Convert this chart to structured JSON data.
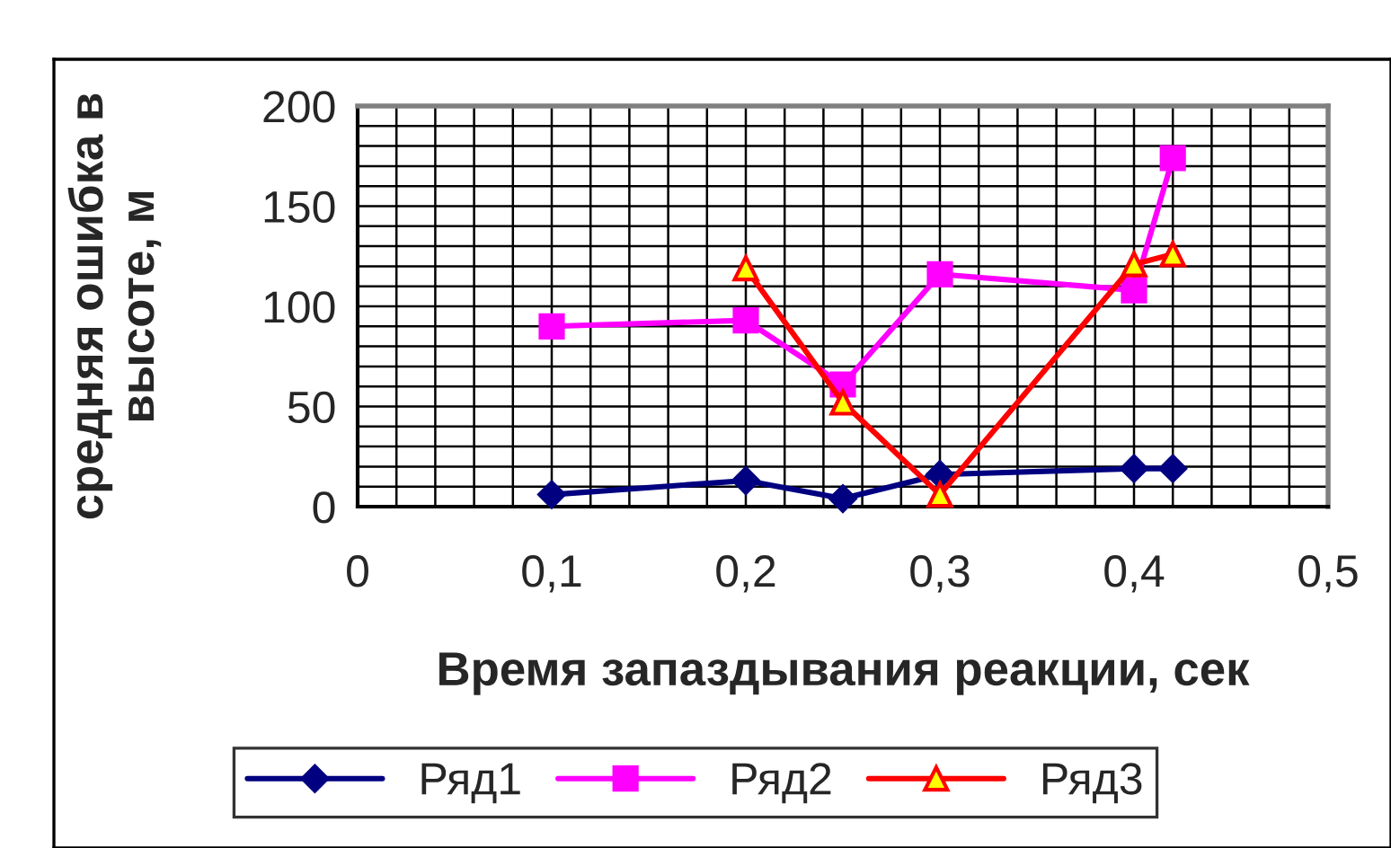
{
  "chart_data": {
    "type": "line",
    "xlabel": "Время запаздывания реакции, сек",
    "ylabel": "средняя ошибка в высоте, м",
    "x": [
      0.1,
      0.2,
      0.25,
      0.3,
      0.4,
      0.42
    ],
    "series": [
      {
        "name": "Ряд1",
        "color": "#000080",
        "marker": "diamond",
        "values": [
          6,
          13,
          4,
          16,
          19,
          19
        ]
      },
      {
        "name": "Ряд2",
        "color": "#ff00ff",
        "marker": "square",
        "values": [
          90,
          93,
          61,
          116,
          108,
          174
        ]
      },
      {
        "name": "Ряд3",
        "color": "#ff0000",
        "marker": "triangle",
        "values": [
          null,
          119,
          52,
          6,
          121,
          126
        ]
      }
    ],
    "xlim": [
      0,
      0.5
    ],
    "ylim": [
      0,
      200
    ],
    "xticks": [
      {
        "value": 0,
        "label": "0"
      },
      {
        "value": 0.02,
        "label": null
      },
      {
        "value": 0.04,
        "label": null
      },
      {
        "value": 0.06,
        "label": null
      },
      {
        "value": 0.08,
        "label": null
      },
      {
        "value": 0.1,
        "label": "0,1"
      },
      {
        "value": 0.12,
        "label": null
      },
      {
        "value": 0.14,
        "label": null
      },
      {
        "value": 0.16,
        "label": null
      },
      {
        "value": 0.18,
        "label": null
      },
      {
        "value": 0.2,
        "label": "0,2"
      },
      {
        "value": 0.22,
        "label": null
      },
      {
        "value": 0.24,
        "label": null
      },
      {
        "value": 0.26,
        "label": null
      },
      {
        "value": 0.28,
        "label": null
      },
      {
        "value": 0.3,
        "label": "0,3"
      },
      {
        "value": 0.32,
        "label": null
      },
      {
        "value": 0.34,
        "label": null
      },
      {
        "value": 0.36,
        "label": null
      },
      {
        "value": 0.38,
        "label": null
      },
      {
        "value": 0.4,
        "label": "0,4"
      },
      {
        "value": 0.42,
        "label": null
      },
      {
        "value": 0.44,
        "label": null
      },
      {
        "value": 0.46,
        "label": null
      },
      {
        "value": 0.48,
        "label": null
      },
      {
        "value": 0.5,
        "label": "0,5"
      }
    ],
    "yticks": [
      0,
      {
        "value": 10,
        "label": null
      },
      {
        "value": 20,
        "label": null
      },
      {
        "value": 30,
        "label": null
      },
      {
        "value": 40,
        "label": null
      },
      50,
      {
        "value": 60,
        "label": null
      },
      {
        "value": 70,
        "label": null
      },
      {
        "value": 80,
        "label": null
      },
      {
        "value": 90,
        "label": null
      },
      100,
      {
        "value": 110,
        "label": null
      },
      {
        "value": 120,
        "label": null
      },
      {
        "value": 130,
        "label": null
      },
      {
        "value": 140,
        "label": null
      },
      150,
      {
        "value": 160,
        "label": null
      },
      {
        "value": 170,
        "label": null
      },
      {
        "value": 180,
        "label": null
      },
      {
        "value": 190,
        "label": null
      },
      200
    ],
    "grid": true,
    "legend": "bottom",
    "line_style": "solid"
  }
}
